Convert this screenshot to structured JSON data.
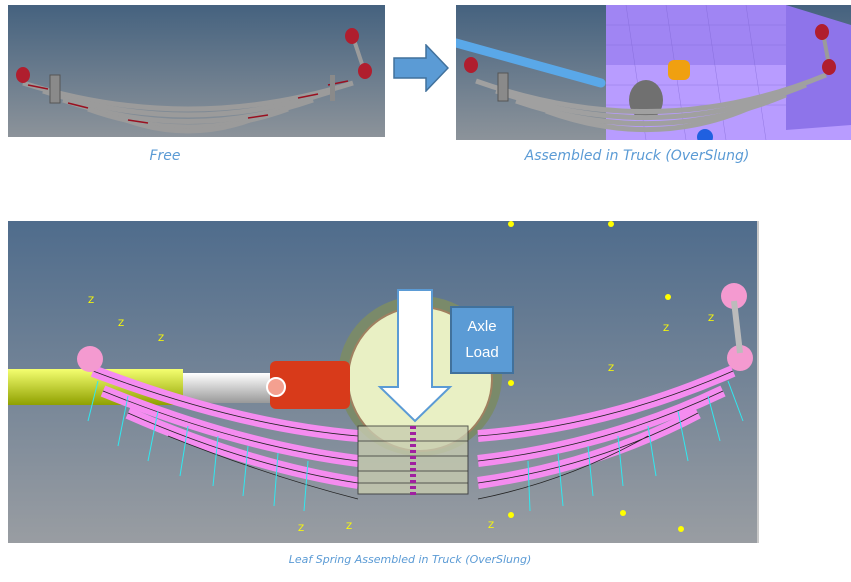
{
  "figure": {
    "panels": [
      {
        "caption": "Free"
      },
      {
        "caption": "Assembled in Truck (OverSlung)"
      }
    ],
    "detail": {
      "annotation": "Axle Load",
      "caption": "Leaf Spring Assembled in Truck (OverSlung)",
      "axis_label": "Z"
    },
    "colors": {
      "caption": "#5b9bd5",
      "background_top": "#4a6888",
      "background_bottom": "#8f959a",
      "leaf": "#a0a0a0",
      "pink_mesh": "#f58cf0",
      "eye": "#b01e2e",
      "frame": "#a98cf5"
    }
  }
}
